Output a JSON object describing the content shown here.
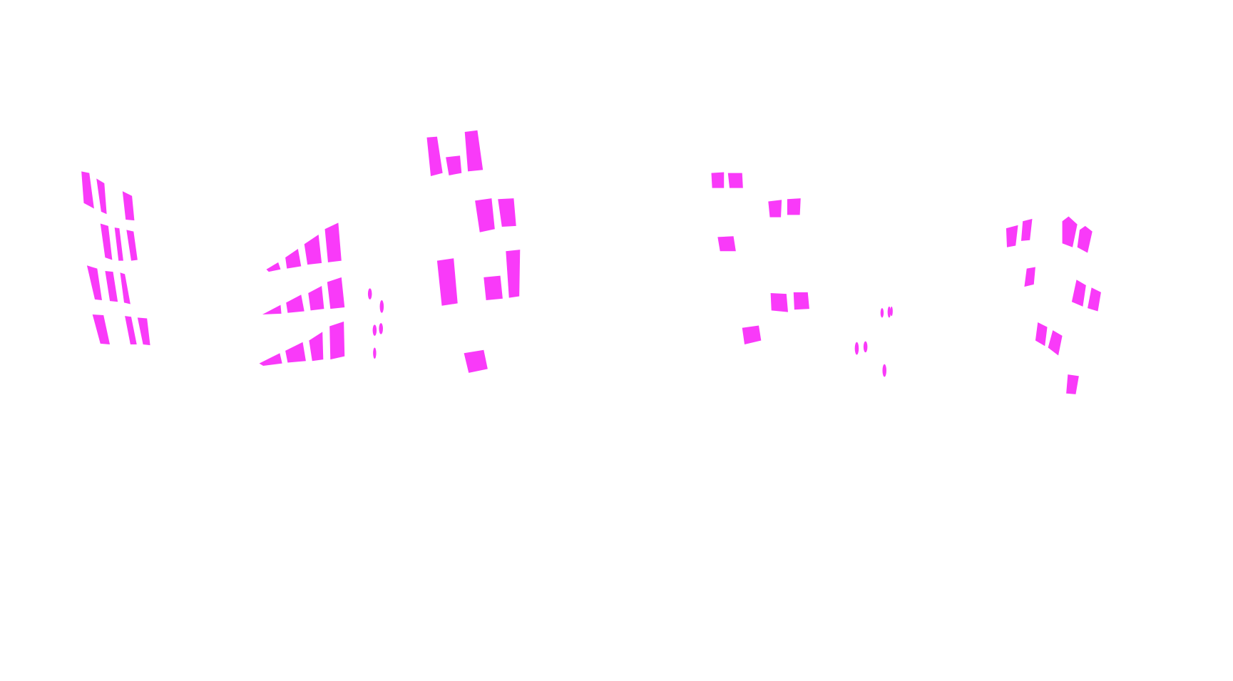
{
  "canvas": {
    "background": "#ffffff",
    "mask_color": "#f93af9"
  }
}
